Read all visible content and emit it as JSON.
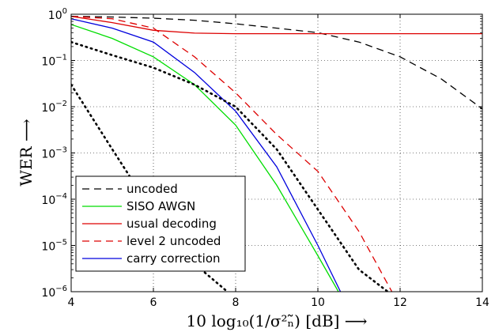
{
  "chart_data": {
    "type": "line",
    "xlabel": "10 log₁₀(1/σ²ₙ̃) [dB] ⟶",
    "ylabel": "WER ⟶",
    "xlim": [
      4,
      14
    ],
    "ylim_log10": [
      -6,
      0
    ],
    "xscale": "linear",
    "yscale": "log",
    "grid": true,
    "legend_position": "bottom-left",
    "x_ticks": [
      "4",
      "6",
      "8",
      "10",
      "12",
      "14"
    ],
    "y_ticks": [
      {
        "base": "10",
        "exp": "0"
      },
      {
        "base": "10",
        "exp": "−1"
      },
      {
        "base": "10",
        "exp": "−2"
      },
      {
        "base": "10",
        "exp": "−3"
      },
      {
        "base": "10",
        "exp": "−4"
      },
      {
        "base": "10",
        "exp": "−5"
      },
      {
        "base": "10",
        "exp": "−6"
      }
    ],
    "series": [
      {
        "name": "uncoded",
        "color": "#000000",
        "dash": "dashed",
        "x": [
          4,
          5,
          6,
          7,
          8,
          9,
          10,
          11,
          12,
          13,
          14
        ],
        "y": [
          0.9,
          0.87,
          0.82,
          0.74,
          0.62,
          0.5,
          0.4,
          0.25,
          0.12,
          0.04,
          0.009
        ]
      },
      {
        "name": "SISO AWGN",
        "color": "#00dd00",
        "dash": "solid",
        "x": [
          4,
          5,
          6,
          7,
          8,
          9,
          10,
          10.5
        ],
        "y": [
          0.6,
          0.3,
          0.12,
          0.03,
          0.004,
          0.0002,
          6e-06,
          1e-06
        ]
      },
      {
        "name": "usual decoding",
        "color": "#dd0000",
        "dash": "solid",
        "x": [
          4,
          5,
          6,
          7,
          8,
          9,
          10,
          11,
          12,
          13,
          14
        ],
        "y": [
          0.9,
          0.66,
          0.45,
          0.39,
          0.38,
          0.38,
          0.38,
          0.38,
          0.38,
          0.38,
          0.38
        ]
      },
      {
        "name": "level 2 uncoded",
        "color": "#dd0000",
        "dash": "dashed",
        "x": [
          4,
          5,
          6,
          7,
          8,
          9,
          10,
          11,
          11.8
        ],
        "y": [
          0.9,
          0.8,
          0.5,
          0.12,
          0.02,
          0.0025,
          0.0004,
          2e-05,
          1e-06
        ]
      },
      {
        "name": "carry correction",
        "color": "#0000dd",
        "dash": "solid",
        "x": [
          4,
          5,
          6,
          7,
          8,
          9,
          10,
          10.55
        ],
        "y": [
          0.8,
          0.5,
          0.25,
          0.055,
          0.008,
          0.0005,
          1e-05,
          1e-06
        ]
      },
      {
        "name": "",
        "color": "#000000",
        "dash": "dotted",
        "x": [
          4,
          5,
          6,
          7,
          8,
          9,
          10,
          11,
          11.7
        ],
        "y": [
          0.25,
          0.13,
          0.07,
          0.03,
          0.01,
          0.0012,
          6e-05,
          3e-06,
          1e-06
        ]
      },
      {
        "name": "",
        "color": "#000000",
        "dash": "dotted",
        "x": [
          4,
          5,
          6,
          7,
          7.8
        ],
        "y": [
          0.03,
          0.0012,
          5e-05,
          4e-06,
          1e-06
        ]
      }
    ],
    "legend": [
      "uncoded",
      "SISO AWGN",
      "usual decoding",
      "level 2 uncoded",
      "carry correction"
    ]
  }
}
